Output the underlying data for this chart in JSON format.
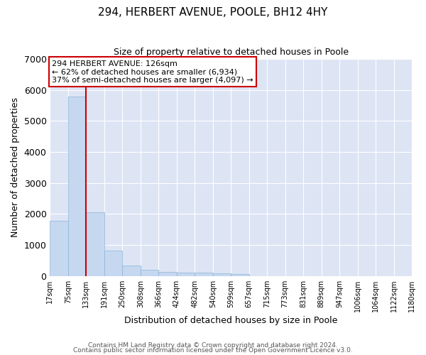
{
  "title1": "294, HERBERT AVENUE, POOLE, BH12 4HY",
  "title2": "Size of property relative to detached houses in Poole",
  "xlabel": "Distribution of detached houses by size in Poole",
  "ylabel": "Number of detached properties",
  "bin_labels": [
    "17sqm",
    "75sqm",
    "133sqm",
    "191sqm",
    "250sqm",
    "308sqm",
    "366sqm",
    "424sqm",
    "482sqm",
    "540sqm",
    "599sqm",
    "657sqm",
    "715sqm",
    "773sqm",
    "831sqm",
    "889sqm",
    "947sqm",
    "1006sqm",
    "1064sqm",
    "1122sqm",
    "1180sqm"
  ],
  "values": [
    1780,
    5780,
    2060,
    820,
    340,
    195,
    130,
    110,
    95,
    80,
    60,
    0,
    0,
    0,
    0,
    0,
    0,
    0,
    0,
    0
  ],
  "bar_color": "#c5d8ef",
  "bar_edge_color": "#8ab4d8",
  "vline_color": "#cc0000",
  "vline_x_idx": 1.5,
  "annotation_text": "294 HERBERT AVENUE: 126sqm\n← 62% of detached houses are smaller (6,934)\n37% of semi-detached houses are larger (4,097) →",
  "ylim": [
    0,
    7000
  ],
  "yticks": [
    0,
    1000,
    2000,
    3000,
    4000,
    5000,
    6000,
    7000
  ],
  "footer1": "Contains HM Land Registry data © Crown copyright and database right 2024.",
  "footer2": "Contains public sector information licensed under the Open Government Licence v3.0.",
  "plot_bg_color": "#dde5f5",
  "figsize": [
    6.0,
    5.0
  ],
  "dpi": 100
}
